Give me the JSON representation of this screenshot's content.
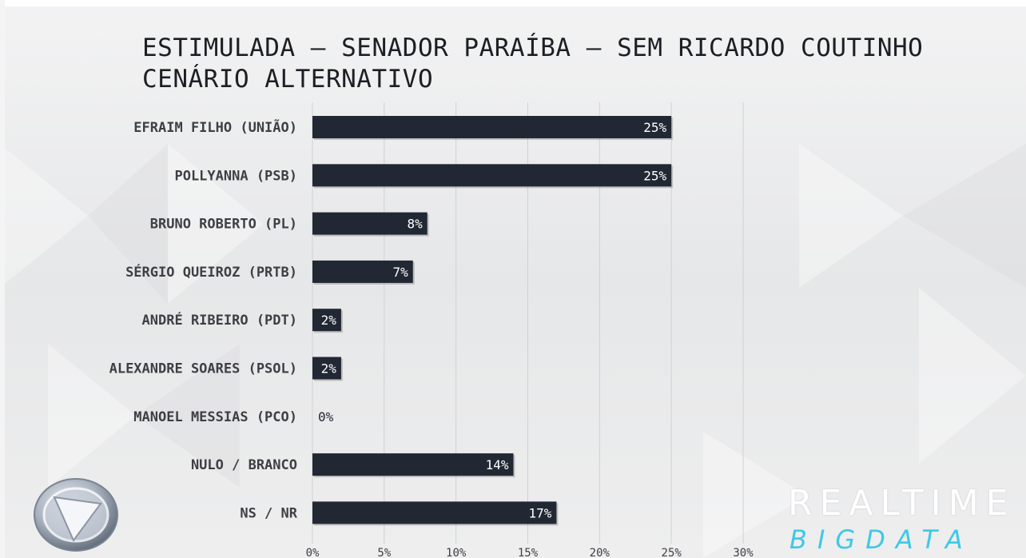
{
  "title_line1": "ESTIMULADA – SENADOR PARAÍBA – SEM RICARDO COUTINHO",
  "title_line2": "CENÁRIO ALTERNATIVO",
  "brand": {
    "top": "REALTIME",
    "bottom": "BIGDATA"
  },
  "colors": {
    "bar": "#222833",
    "bar_text": "#ffffff",
    "zero_text": "#222833",
    "brand_accent": "#3ec9e6"
  },
  "chart_data": {
    "type": "bar",
    "orientation": "horizontal",
    "categories": [
      "EFRAIM FILHO (UNIÃO)",
      "POLLYANNA (PSB)",
      "BRUNO ROBERTO (PL)",
      "SÉRGIO QUEIROZ (PRTB)",
      "ANDRÉ RIBEIRO (PDT)",
      "ALEXANDRE SOARES (PSOL)",
      "MANOEL MESSIAS (PCO)",
      "NULO / BRANCO",
      "NS / NR"
    ],
    "values": [
      25,
      25,
      8,
      7,
      2,
      2,
      0,
      14,
      17
    ],
    "value_labels": [
      "25%",
      "25%",
      "8%",
      "7%",
      "2%",
      "2%",
      "0%",
      "14%",
      "17%"
    ],
    "xlim": [
      0,
      30
    ],
    "xticks": [
      0,
      5,
      10,
      15,
      20,
      25,
      30
    ],
    "xtick_labels": [
      "0%",
      "5%",
      "10%",
      "15%",
      "20%",
      "25%",
      "30%"
    ],
    "grid": "vertical"
  }
}
